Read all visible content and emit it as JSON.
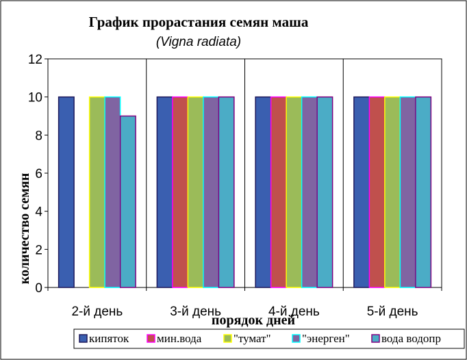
{
  "chart_data": {
    "type": "bar",
    "title": "График прорастания семян маша",
    "subtitle": "(Vigna radiata)",
    "xlabel": "порядок дней",
    "ylabel": "количество семян",
    "ylim": [
      0,
      12
    ],
    "yticks": [
      "0",
      "2",
      "4",
      "6",
      "8",
      "10",
      "12"
    ],
    "grid": "vertical separators between categories",
    "legend_position": "bottom",
    "categories": [
      "2-й день",
      "3-й день",
      "4-й день",
      "5-й день"
    ],
    "series": [
      {
        "name": "кипяток",
        "color": "#3a5fb0",
        "border": "#1f1a5c",
        "values": [
          10,
          10,
          10,
          10
        ]
      },
      {
        "name": "мин.вода",
        "color": "#c0504d",
        "border": "#ff00ff",
        "values": [
          0,
          10,
          10,
          10
        ]
      },
      {
        "name": "\"тумат\"",
        "color": "#9bbb59",
        "border": "#ffff00",
        "values": [
          10,
          10,
          10,
          10
        ]
      },
      {
        "name": "\"энерген\"",
        "color": "#8064a2",
        "border": "#00ffff",
        "values": [
          10,
          10,
          10,
          10
        ]
      },
      {
        "name": "вода водопр",
        "color": "#4bacc6",
        "border": "#800080",
        "values": [
          9,
          10,
          10,
          10
        ]
      }
    ]
  }
}
